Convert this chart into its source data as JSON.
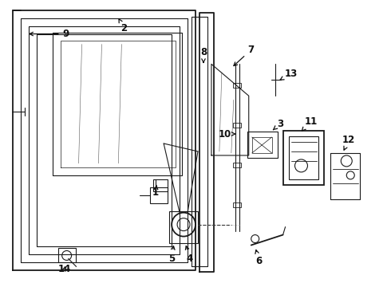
{
  "background_color": "#ffffff",
  "line_color": "#1a1a1a",
  "fig_width": 4.9,
  "fig_height": 3.6,
  "dpi": 100,
  "label_fontsize": 8.5,
  "label_fontweight": "bold",
  "arrow_color": "#111111"
}
